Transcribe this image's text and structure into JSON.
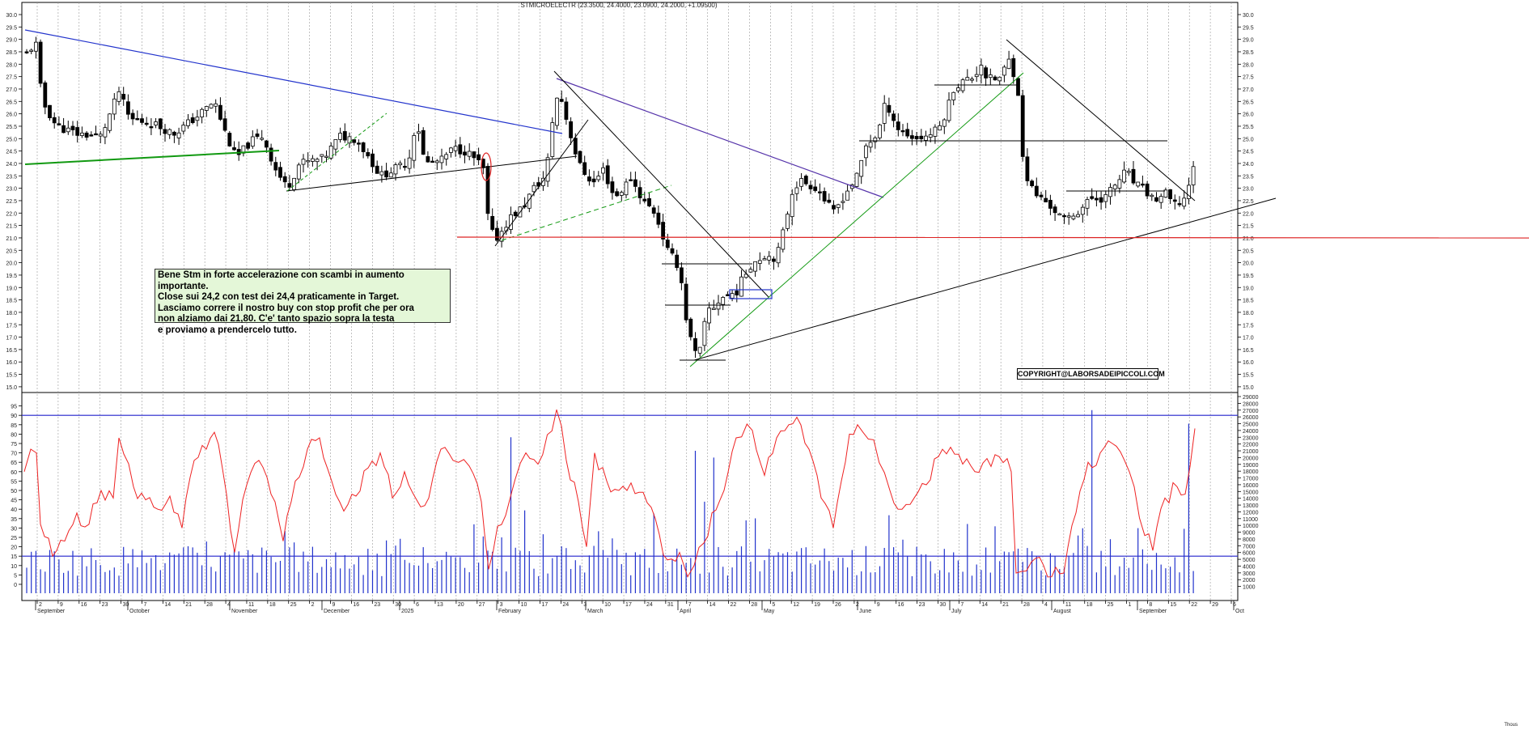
{
  "chart_data": {
    "type": "candlestick",
    "title": "STMICROELECTR (23.3500, 24.4000, 23.0900, 24.2000, +1.09500)",
    "price_axis": {
      "min": 15,
      "max": 30,
      "ticks": [
        "30.0",
        "29.5",
        "29.0",
        "28.5",
        "28.0",
        "27.5",
        "27.0",
        "26.5",
        "26.0",
        "25.5",
        "25.0",
        "24.5",
        "24.0",
        "23.5",
        "23.0",
        "22.5",
        "22.0",
        "21.5",
        "21.0",
        "20.5",
        "20.0",
        "19.5",
        "19.0",
        "18.5",
        "18.0",
        "17.5",
        "17.0",
        "16.5",
        "16.0",
        "15.5",
        "15.0"
      ]
    },
    "oscillator_axis": {
      "min": 0,
      "max": 95,
      "ticks": [
        "95",
        "90",
        "85",
        "80",
        "75",
        "70",
        "65",
        "60",
        "55",
        "50",
        "45",
        "40",
        "35",
        "30",
        "25",
        "20",
        "15",
        "10",
        "5",
        "0"
      ],
      "levels": [
        90,
        15
      ]
    },
    "volume_axis": {
      "max": 29000,
      "ticks": [
        "29000",
        "28000",
        "27000",
        "26000",
        "25000",
        "24000",
        "23000",
        "22000",
        "21000",
        "20000",
        "19000",
        "18000",
        "17000",
        "16000",
        "15000",
        "14000",
        "13000",
        "12000",
        "11000",
        "10000",
        "9000",
        "8000",
        "7000",
        "6000",
        "5000",
        "4000",
        "3000",
        "2000",
        "1000"
      ]
    },
    "x_ticks": [
      "2",
      "9",
      "16",
      "23",
      "30",
      "7",
      "14",
      "21",
      "28",
      "4",
      "11",
      "18",
      "25",
      "2",
      "9",
      "16",
      "23",
      "30",
      "6",
      "13",
      "20",
      "27",
      "3",
      "10",
      "17",
      "24",
      "3",
      "10",
      "17",
      "24",
      "31",
      "7",
      "14",
      "22",
      "28",
      "5",
      "12",
      "19",
      "26",
      "2",
      "9",
      "16",
      "23",
      "30",
      "7",
      "14",
      "21",
      "28",
      "4",
      "11",
      "18",
      "25",
      "1",
      "8",
      "15",
      "22",
      "29",
      "6"
    ],
    "months": [
      "September",
      "October",
      "November",
      "December",
      "2025",
      "February",
      "March",
      "April",
      "May",
      "June",
      "July",
      "August",
      "September",
      "Oct"
    ],
    "volume_unit_label": "Thous",
    "candles": [],
    "support_level": 20.7,
    "ann_text": [
      "Bene Stm in forte accelerazione con scambi in aumento importante.",
      "Close sui 24,2 con test dei 24,4 praticamente in Target.",
      "Lasciamo correre il nostro buy con stop profit che per ora",
      "non alziamo dai 21,80. C'e' tanto spazio sopra la testa",
      "e proviamo a prendercelo tutto."
    ],
    "copyright": "COPYRIGHT@LABORSADEIPICCOLI.COM"
  }
}
